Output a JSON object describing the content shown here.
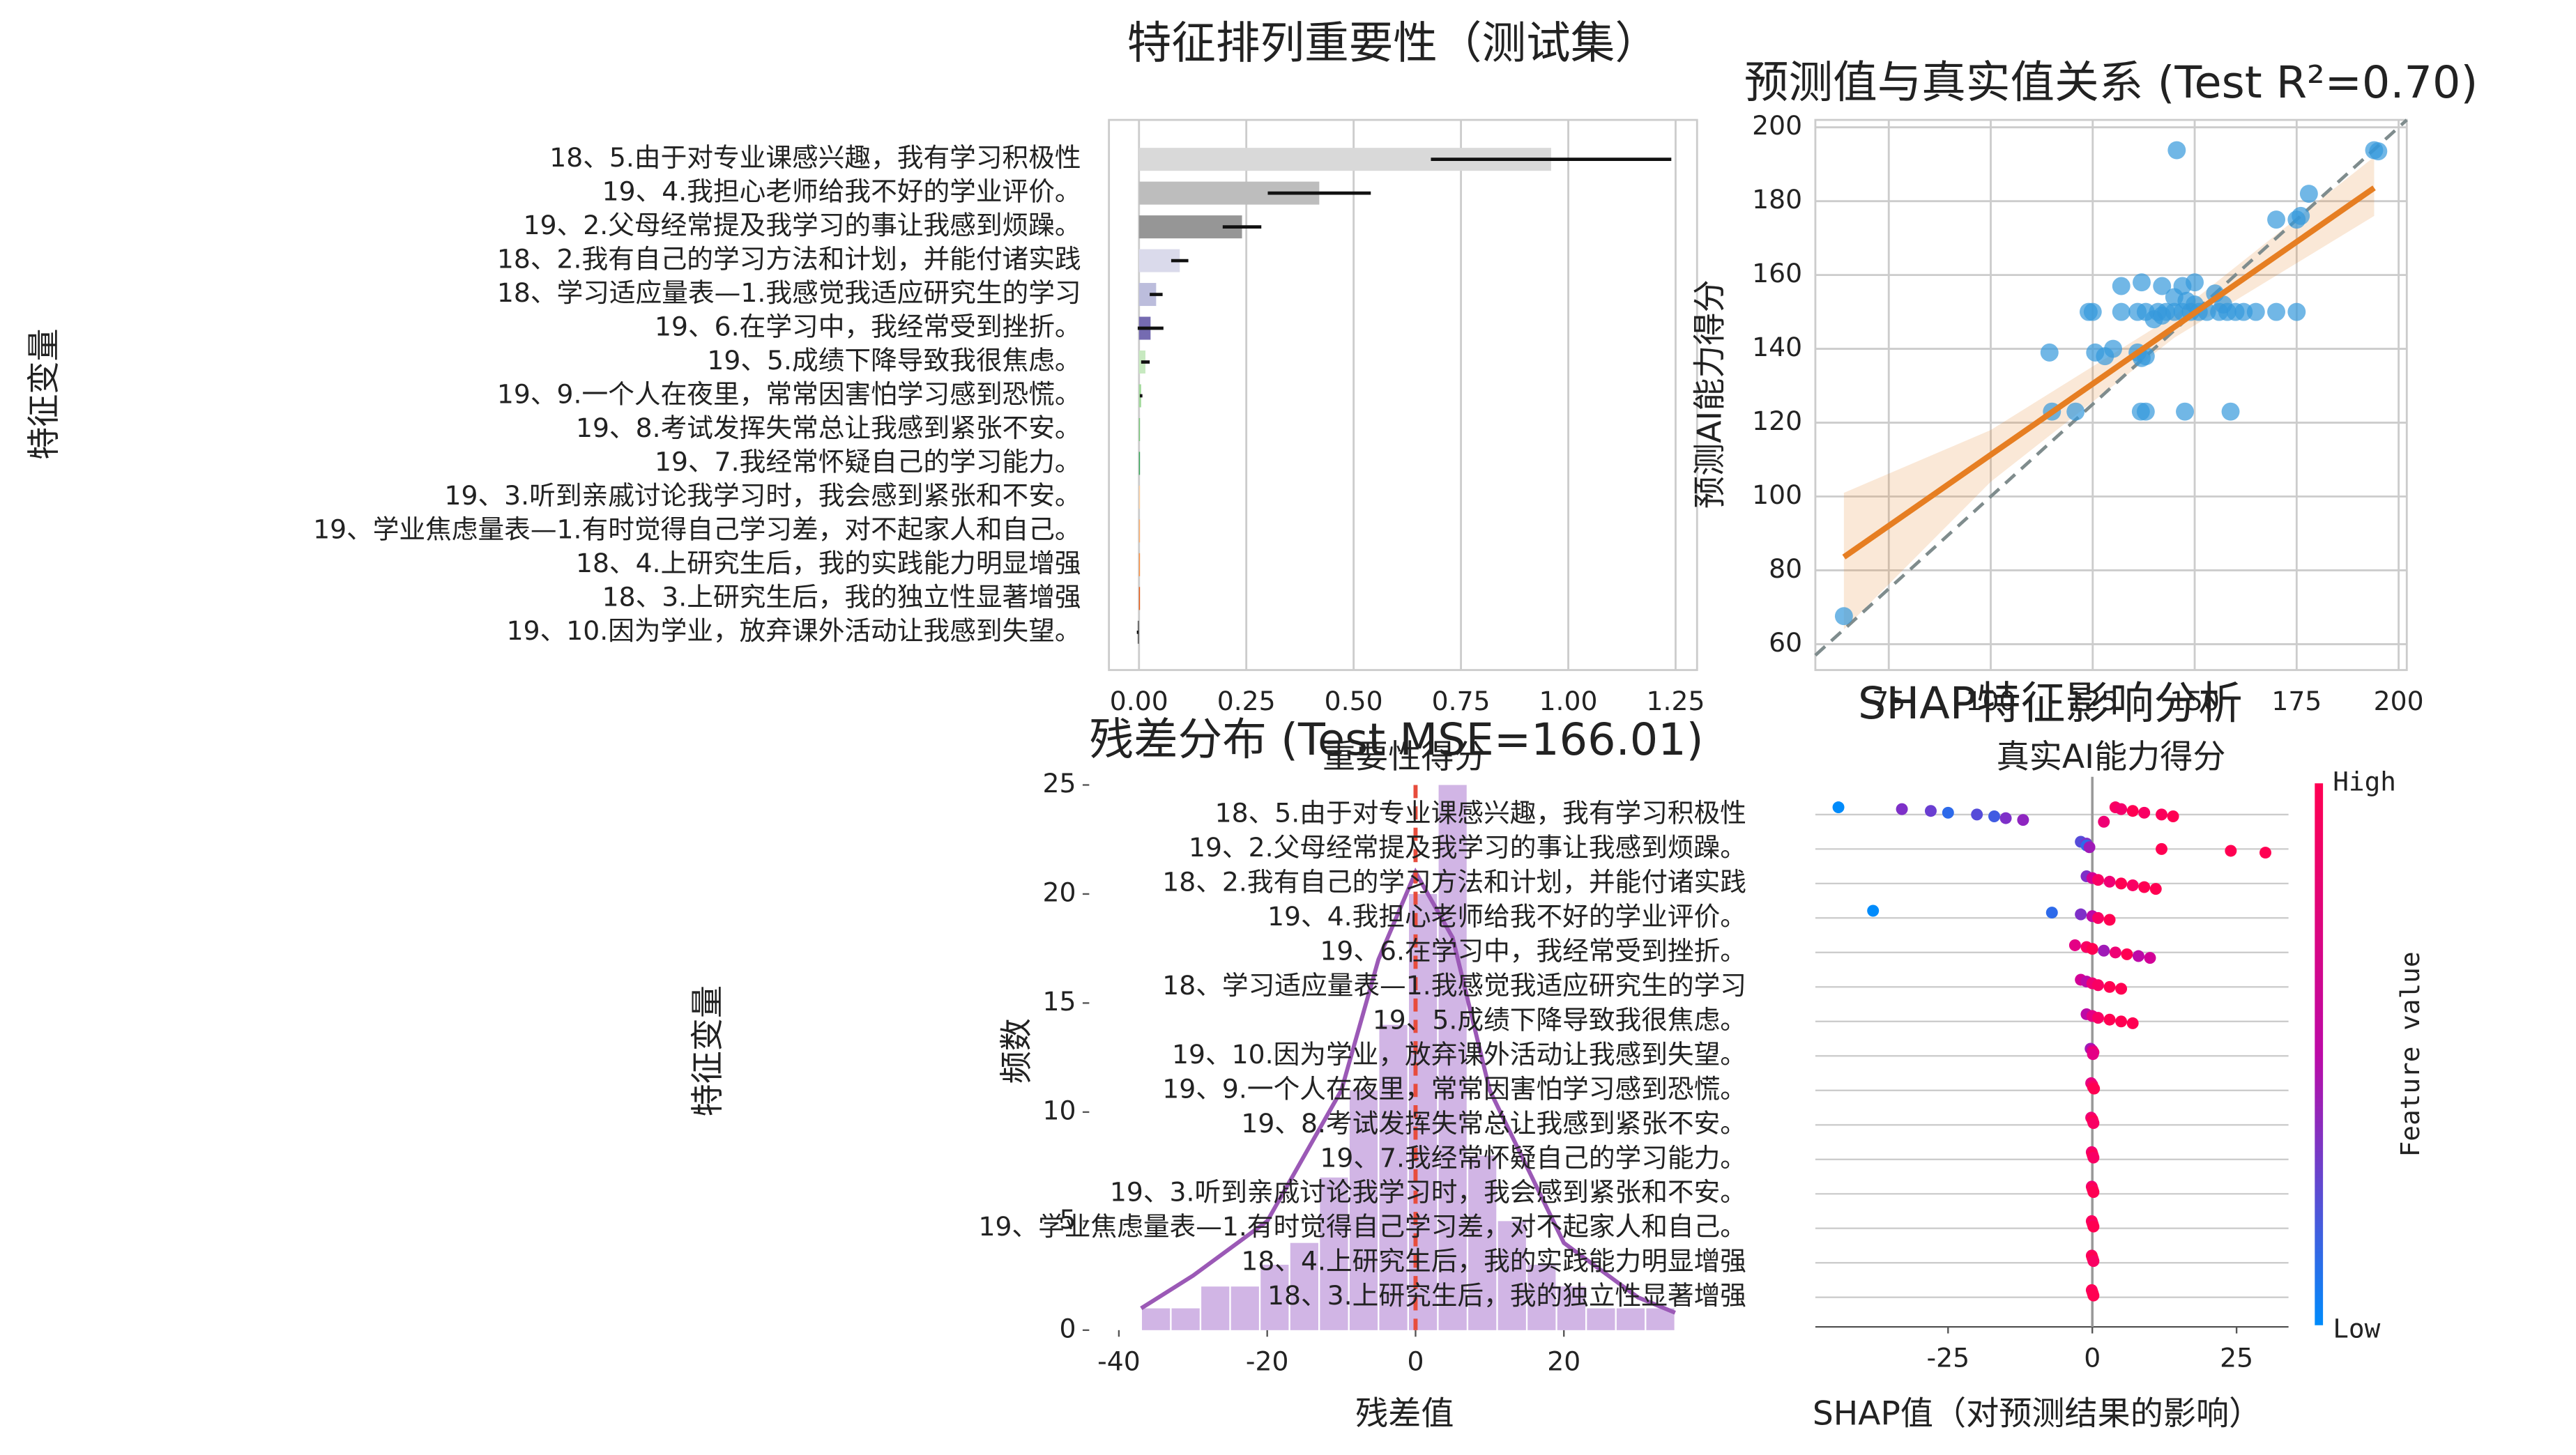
{
  "chart_data": [
    {
      "type": "bar",
      "orientation": "horizontal",
      "title": "特征排列重要性（测试集）",
      "x_label": "重要性得分",
      "y_label": "特征变量",
      "categories": [
        "18、5.由于对专业课感兴趣，我有学习积极性",
        "19、4.我担心老师给我不好的学业评价。",
        "19、2.父母经常提及我学习的事让我感到烦躁。",
        "18、2.我有自己的学习方法和计划，并能付诸实践",
        "18、学习适应量表—1.我感觉我适应研究生的学习",
        "19、6.在学习中，我经常受到挫折。",
        "19、5.成绩下降导致我很焦虑。",
        "19、9.一个人在夜里，常常因害怕学习感到恐慌。",
        "19、8.考试发挥失常总让我感到紧张不安。",
        "19、7.我经常怀疑自己的学习能力。",
        "19、3.听到亲戚讨论我学习时，我会感到紧张和不安。",
        "19、学业焦虑量表—1.有时觉得自己学习差，对不起家人和自己。",
        "18、4.上研究生后，我的实践能力明显增强",
        "18、3.上研究生后，我的独立性显著增强",
        "19、10.因为学业，放弃课外活动让我感到失望。"
      ],
      "values": [
        0.96,
        0.42,
        0.24,
        0.095,
        0.04,
        0.027,
        0.015,
        0.005,
        0,
        0,
        0,
        0,
        0,
        0,
        -0.003
      ],
      "errors": [
        0.28,
        0.12,
        0.045,
        0.02,
        0.015,
        0.03,
        0.01,
        0.003,
        0,
        0,
        0,
        0,
        0,
        0,
        0.002
      ],
      "colors": [
        "#d9d9d9",
        "#bdbdbd",
        "#969696",
        "#dadaeb",
        "#bcbddc",
        "#756bb1",
        "#c7e9c0",
        "#a1d99b",
        "#74c476",
        "#31a354",
        "#fdd0a2",
        "#fdae6b",
        "#fd8d3c",
        "#e6550d",
        "#636363"
      ],
      "error_color": "#111111",
      "xlim": [
        -0.07,
        1.3
      ],
      "xticks": [
        {
          "value": 0,
          "label": "0.00"
        },
        {
          "value": 0.25,
          "label": "0.25"
        },
        {
          "value": 0.5,
          "label": "0.50"
        },
        {
          "value": 0.75,
          "label": "0.75"
        },
        {
          "value": 1,
          "label": "1.00"
        },
        {
          "value": 1.25,
          "label": "1.25"
        }
      ],
      "grid": true
    },
    {
      "type": "scatter",
      "title": "预测值与真实值关系 (Test R²=0.70)",
      "x_label": "真实AI能力得分",
      "y_label": "预测AI能力得分",
      "x": [
        64,
        145.6,
        194,
        195,
        115,
        120.8,
        136.8,
        138,
        147.6,
        158.8,
        114.4,
        125.6,
        128,
        136,
        137,
        138,
        130,
        132,
        137,
        142,
        147,
        150,
        124,
        125,
        132,
        136,
        138,
        141,
        143,
        145,
        147,
        149,
        151,
        153,
        156,
        158,
        160,
        162,
        165,
        170,
        175,
        150,
        148,
        145,
        155,
        140,
        170,
        175,
        176,
        178,
        142,
        157
      ],
      "y": [
        67.6,
        193.8,
        193.8,
        193.5,
        123,
        123,
        123,
        123,
        123,
        123,
        139,
        139,
        138,
        139,
        137.5,
        138,
        140,
        157,
        158,
        157,
        157,
        158,
        150,
        150,
        150,
        150,
        150,
        150,
        150,
        150,
        150,
        150,
        150,
        150,
        150,
        150,
        150,
        150,
        150,
        150,
        150,
        152,
        153,
        154,
        155,
        148,
        175,
        175,
        176,
        182,
        149,
        152
      ],
      "color": "#3498db",
      "regression": {
        "x": [
          64,
          100,
          145,
          194
        ],
        "y": [
          83.6,
          111.3,
          145.9,
          183.6
        ],
        "lower": [
          64,
          104,
          143,
          176
        ],
        "upper": [
          101,
          118,
          149,
          192
        ],
        "color": "#e67e22"
      },
      "reference_line": {
        "x": [
          57,
          202
        ],
        "y": [
          57,
          202
        ],
        "color": "#7f8c8d"
      },
      "xlim": [
        57,
        202
      ],
      "ylim": [
        53,
        202
      ],
      "xticks": [
        75,
        100,
        125,
        150,
        175,
        200
      ],
      "yticks": [
        60,
        80,
        100,
        120,
        140,
        160,
        180,
        200
      ],
      "grid": true
    },
    {
      "type": "histogram",
      "title": "残差分布 (Test MSE=166.01)",
      "x_label": "残差值",
      "y_label": "频数",
      "bins": [
        -37,
        -33,
        -29,
        -25,
        -21,
        -17,
        -13,
        -9,
        -5,
        -1,
        3,
        7,
        11,
        15,
        19,
        23,
        27,
        31,
        35
      ],
      "counts": [
        1,
        1,
        2,
        2,
        3,
        4,
        7,
        11,
        14,
        20,
        25,
        8,
        5,
        3,
        2,
        1,
        1,
        1
      ],
      "color": "#c9a8e0",
      "kde": {
        "x": [
          -37,
          -30,
          -20,
          -10,
          -5,
          0,
          5,
          10,
          20,
          30,
          35
        ],
        "y": [
          1,
          2.5,
          5,
          11,
          17,
          21,
          18,
          11,
          4,
          1.5,
          0.8
        ],
        "color": "#9b59b6"
      },
      "reference_x": 0,
      "reference_color": "#e74c3c",
      "xlim": [
        -44,
        38.4
      ],
      "ylim": [
        0,
        25
      ],
      "xticks": [
        -40,
        -20,
        0,
        20
      ],
      "yticks": [
        0,
        5,
        10,
        15,
        20,
        25
      ]
    },
    {
      "type": "beeswarm",
      "title": "SHAP特征影响分析",
      "x_label": "SHAP值（对预测结果的影响）",
      "y_label": "特征变量",
      "colorbar": {
        "high": "High",
        "low": "Low",
        "label": "Feature value",
        "cmap": [
          "#008bfb",
          "#ff0052"
        ]
      },
      "series": [
        {
          "name": "18、5.由于对专业课感兴趣，我有学习积极性",
          "values": [
            -44,
            -33,
            -28,
            -25,
            -20,
            -17,
            -15,
            -12,
            2,
            4,
            5,
            7,
            9,
            12,
            14
          ],
          "feature_values": [
            0,
            0.3,
            0.25,
            0.1,
            0.2,
            0.15,
            0.3,
            0.35,
            0.8,
            0.9,
            0.85,
            1,
            0.9,
            0.95,
            1
          ]
        },
        {
          "name": "19、2.父母经常提及我学习的事让我感到烦躁。",
          "values": [
            -2,
            -1,
            -1,
            -0.5,
            12,
            24,
            30
          ],
          "feature_values": [
            0.2,
            0.3,
            0.1,
            0.4,
            1,
            1,
            1
          ]
        },
        {
          "name": "18、2.我有自己的学习方法和计划，并能付诸实践",
          "values": [
            -1,
            0,
            1,
            3,
            5,
            7,
            9,
            11
          ],
          "feature_values": [
            0.3,
            0.6,
            0.9,
            0.8,
            1,
            0.9,
            1,
            1
          ]
        },
        {
          "name": "19、4.我担心老师给我不好的学业评价。",
          "values": [
            -38,
            -7,
            -2,
            0,
            1,
            3
          ],
          "feature_values": [
            0,
            0.1,
            0.3,
            0.5,
            0.9,
            1
          ]
        },
        {
          "name": "19、6.在学习中，我经常受到挫折。",
          "values": [
            -3,
            -1,
            0,
            2,
            4,
            6,
            8,
            10
          ],
          "feature_values": [
            0.7,
            0.9,
            1,
            0.4,
            0.8,
            1,
            0.5,
            0.6
          ]
        },
        {
          "name": "18、学习适应量表—1.我感觉我适应研究生的学习",
          "values": [
            -2,
            -1,
            0,
            1,
            3,
            5
          ],
          "feature_values": [
            0.6,
            0.5,
            0.8,
            0.9,
            1,
            1
          ]
        },
        {
          "name": "19、5.成绩下降导致我很焦虑。",
          "values": [
            -1,
            0,
            1,
            3,
            5,
            7
          ],
          "feature_values": [
            0.5,
            0.7,
            0.9,
            1,
            1,
            1
          ]
        },
        {
          "name": "19、10.因为学业，放弃课外活动让我感到失望。",
          "values": [
            -0.3,
            0,
            0.2,
            0.1
          ],
          "feature_values": [
            0.4,
            0.6,
            0.8,
            0.7
          ]
        },
        {
          "name": "19、9.一个人在夜里，常常因害怕学习感到恐慌。",
          "values": [
            -0.2,
            0,
            0.1,
            0.3
          ],
          "feature_values": [
            0.7,
            0.8,
            0.9,
            1
          ]
        },
        {
          "name": "19、8.考试发挥失常总让我感到紧张不安。",
          "values": [
            -0.2,
            0,
            0.1,
            0.2
          ],
          "feature_values": [
            0.8,
            0.9,
            1,
            0.9
          ]
        },
        {
          "name": "19、7.我经常怀疑自己的学习能力。",
          "values": [
            -0.1,
            0,
            0.1,
            0.2
          ],
          "feature_values": [
            0.8,
            0.9,
            1,
            0.9
          ]
        },
        {
          "name": "19、3.听到亲戚讨论我学习时，我会感到紧张和不安。",
          "values": [
            -0.1,
            0,
            0.1,
            0.2
          ],
          "feature_values": [
            0.8,
            1,
            0.9,
            1
          ]
        },
        {
          "name": "19、学业焦虑量表—1.有时觉得自己学习差，对不起家人和自己。",
          "values": [
            -0.1,
            0,
            0.1,
            0.2
          ],
          "feature_values": [
            0.9,
            1,
            0.9,
            1
          ]
        },
        {
          "name": "18、4.上研究生后，我的实践能力明显增强",
          "values": [
            -0.1,
            0,
            0.1,
            0.2
          ],
          "feature_values": [
            0.9,
            1,
            1,
            0.9
          ]
        },
        {
          "name": "18、3.上研究生后，我的独立性显著增强",
          "values": [
            -0.1,
            0,
            0.1,
            0.2
          ],
          "feature_values": [
            1,
            0.9,
            1,
            1
          ]
        }
      ],
      "xlim": [
        -48,
        34
      ],
      "xticks": [
        -25,
        0,
        25
      ]
    }
  ]
}
